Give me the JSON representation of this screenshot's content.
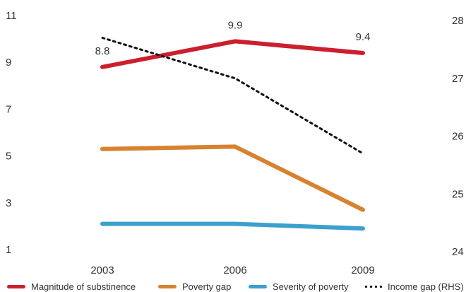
{
  "chart_data": {
    "type": "line",
    "title": "",
    "xlabel": "",
    "ylabel": "",
    "categories": [
      "2003",
      "2006",
      "2009"
    ],
    "y_left": {
      "ylim": [
        1,
        11
      ],
      "ticks": [
        "1",
        "3",
        "5",
        "7",
        "9",
        "11"
      ]
    },
    "y_right": {
      "ylim": [
        24,
        28
      ],
      "ticks": [
        "24",
        "25",
        "26",
        "27",
        "28"
      ]
    },
    "grid": false,
    "legend_position": "bottom",
    "series": [
      {
        "name": "Magnitude of substinence",
        "axis": "left",
        "color": "#cc1f2e",
        "style": "solid",
        "values": [
          8.8,
          9.9,
          9.4
        ],
        "labels": [
          "8.8",
          "9.9",
          "9.4"
        ]
      },
      {
        "name": "Poverty gap",
        "axis": "left",
        "color": "#d8822f",
        "style": "solid",
        "values": [
          5.3,
          5.4,
          2.7
        ]
      },
      {
        "name": "Severity of poverty",
        "axis": "left",
        "color": "#3ba0cd",
        "style": "solid",
        "values": [
          2.1,
          2.1,
          1.9
        ]
      },
      {
        "name": "Income gap (RHS)",
        "axis": "right",
        "color": "#111111",
        "style": "dotted",
        "values": [
          27.7,
          27.0,
          25.7
        ]
      }
    ]
  }
}
